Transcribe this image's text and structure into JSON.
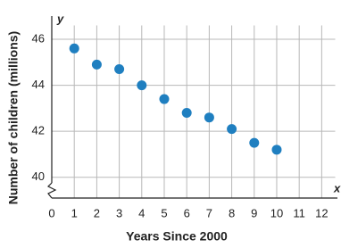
{
  "chart_data": {
    "type": "scatter",
    "x_label": "Years Since 2000",
    "y_label": "Number of children (millions)",
    "x_axis_symbol": "x",
    "y_axis_symbol": "y",
    "x": [
      1,
      2,
      3,
      4,
      5,
      6,
      7,
      8,
      9,
      10
    ],
    "values": [
      45.6,
      44.9,
      44.7,
      44.0,
      43.4,
      42.8,
      42.6,
      42.1,
      41.5,
      41.2
    ],
    "color": "#1f7fc0",
    "xlim": [
      0,
      12.6
    ],
    "xticks": [
      0,
      1,
      2,
      3,
      4,
      5,
      6,
      7,
      8,
      9,
      10,
      11,
      12
    ],
    "ylim": [
      39.1,
      46.6
    ],
    "yticks": [
      40,
      42,
      44,
      46
    ],
    "grid": true
  }
}
